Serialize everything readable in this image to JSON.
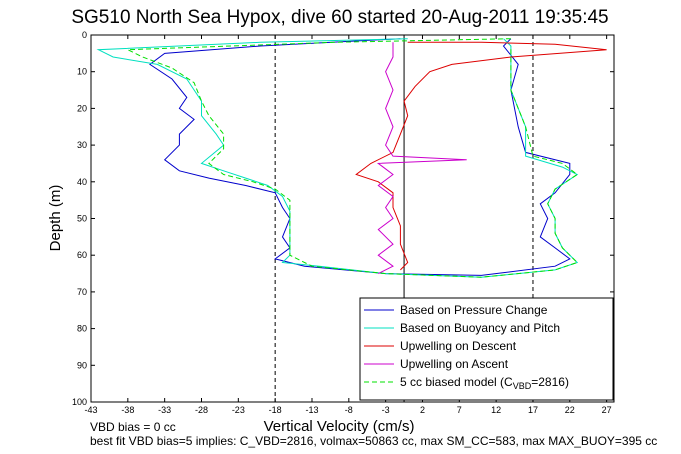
{
  "chart_data": {
    "type": "line",
    "title": "SG510 North Sea Hypox, dive 60 started 20-Aug-2011 19:35:45",
    "xlabel": "Vertical Velocity (cm/s)",
    "ylabel": "Depth (m)",
    "xlim": [
      -43,
      28
    ],
    "ylim": [
      0,
      100
    ],
    "y_reversed": true,
    "xticks": [
      -43,
      -38,
      -33,
      -28,
      -23,
      -18,
      -13,
      -8,
      -3,
      2,
      7,
      12,
      17,
      22,
      27
    ],
    "yticks": [
      0,
      10,
      20,
      30,
      40,
      50,
      60,
      70,
      80,
      90,
      100
    ],
    "grid": false,
    "legend_placement": "bottom-right",
    "vlines": [
      {
        "x": -18,
        "style": "dashed",
        "color": "#000000"
      },
      {
        "x": -0.5,
        "style": "solid",
        "color": "#000000"
      },
      {
        "x": 17,
        "style": "dashed",
        "color": "#000000"
      }
    ],
    "series": [
      {
        "name": "Based on Pressure Change",
        "color": "#0000cc",
        "style": "solid",
        "points": [
          [
            -1,
            1
          ],
          [
            -20,
            3
          ],
          [
            -33,
            5
          ],
          [
            -35,
            8
          ],
          [
            -32,
            12
          ],
          [
            -30,
            17
          ],
          [
            -31,
            20
          ],
          [
            -29,
            23
          ],
          [
            -31,
            27
          ],
          [
            -31,
            30
          ],
          [
            -33,
            34
          ],
          [
            -31,
            37
          ],
          [
            -27,
            39
          ],
          [
            -22,
            41
          ],
          [
            -18,
            43
          ],
          [
            -17,
            47
          ],
          [
            -16,
            50
          ],
          [
            -17,
            55
          ],
          [
            -16,
            58
          ],
          [
            -18,
            61
          ],
          [
            -14,
            63
          ],
          [
            -3,
            65
          ],
          [
            10,
            65.5
          ],
          [
            20,
            63
          ],
          [
            22,
            61
          ],
          [
            20,
            58
          ],
          [
            18,
            55
          ],
          [
            19,
            50
          ],
          [
            18,
            46
          ],
          [
            20,
            43
          ],
          [
            22,
            38
          ],
          [
            22,
            35
          ],
          [
            16,
            32
          ],
          [
            15,
            25
          ],
          [
            14,
            15
          ],
          [
            15,
            8
          ],
          [
            13,
            3
          ],
          [
            14,
            1
          ]
        ]
      },
      {
        "name": "Based on Buoyancy and Pitch",
        "color": "#00e0c0",
        "style": "solid",
        "points": [
          [
            0,
            1
          ],
          [
            -20,
            2
          ],
          [
            -42,
            4
          ],
          [
            -40,
            6
          ],
          [
            -34,
            8
          ],
          [
            -30,
            12
          ],
          [
            -28,
            18
          ],
          [
            -28,
            22
          ],
          [
            -26,
            27
          ],
          [
            -25,
            30
          ],
          [
            -28,
            35
          ],
          [
            -25,
            37
          ],
          [
            -22,
            39
          ],
          [
            -19,
            41
          ],
          [
            -17,
            44
          ],
          [
            -16,
            48
          ],
          [
            -16,
            52
          ],
          [
            -16,
            57
          ],
          [
            -16,
            60
          ],
          [
            -17,
            62
          ],
          [
            -12,
            63
          ],
          [
            -3,
            65
          ],
          [
            10,
            66
          ],
          [
            20,
            64
          ],
          [
            23,
            62
          ],
          [
            21,
            58
          ],
          [
            20,
            54
          ],
          [
            20,
            50
          ],
          [
            19,
            46
          ],
          [
            20,
            42
          ],
          [
            23,
            38
          ],
          [
            21,
            36
          ],
          [
            16,
            33
          ],
          [
            16,
            25
          ],
          [
            14,
            15
          ],
          [
            14,
            8
          ],
          [
            14,
            3
          ],
          [
            13,
            1
          ]
        ]
      },
      {
        "name": "Upwelling on Descent",
        "color": "#dd0000",
        "style": "solid",
        "points": [
          [
            0,
            2
          ],
          [
            10,
            2
          ],
          [
            20,
            2.5
          ],
          [
            27,
            4
          ],
          [
            14,
            6
          ],
          [
            6,
            8
          ],
          [
            3,
            10
          ],
          [
            1,
            14
          ],
          [
            -0.5,
            18
          ],
          [
            0,
            22
          ],
          [
            -1,
            27
          ],
          [
            -2,
            32
          ],
          [
            -5,
            35
          ],
          [
            -7,
            38
          ],
          [
            -4,
            40
          ],
          [
            -2,
            43
          ],
          [
            -2,
            47
          ],
          [
            -1,
            52
          ],
          [
            -1,
            57
          ],
          [
            0,
            62
          ],
          [
            -1,
            64
          ]
        ]
      },
      {
        "name": "Upwelling on Ascent",
        "color": "#cc00cc",
        "style": "solid",
        "points": [
          [
            -4,
            65
          ],
          [
            -2,
            63
          ],
          [
            -4,
            60
          ],
          [
            -2,
            57
          ],
          [
            -4,
            53
          ],
          [
            -2,
            50
          ],
          [
            -3,
            47
          ],
          [
            -2,
            44
          ],
          [
            -4,
            41
          ],
          [
            -2,
            38
          ],
          [
            -4,
            35
          ],
          [
            8,
            34
          ],
          [
            -2,
            33
          ],
          [
            -3,
            30
          ],
          [
            -2,
            25
          ],
          [
            -3,
            20
          ],
          [
            -2,
            15
          ],
          [
            -3,
            10
          ],
          [
            -2,
            6
          ],
          [
            -2,
            2
          ]
        ]
      },
      {
        "name": "5 cc biased model (C_VBD=2816)",
        "color": "#00e000",
        "style": "dashed",
        "points": [
          [
            14,
            1
          ],
          [
            -10,
            2
          ],
          [
            -38,
            4
          ],
          [
            -36,
            6
          ],
          [
            -32,
            9
          ],
          [
            -29,
            13
          ],
          [
            -28,
            18
          ],
          [
            -27,
            22
          ],
          [
            -25,
            27
          ],
          [
            -25,
            31
          ],
          [
            -27,
            35
          ],
          [
            -25,
            38
          ],
          [
            -21,
            40
          ],
          [
            -18,
            42
          ],
          [
            -16,
            45
          ],
          [
            -16,
            50
          ],
          [
            -16,
            55
          ],
          [
            -16,
            60
          ],
          [
            -13,
            63
          ],
          [
            -3,
            65
          ],
          [
            10,
            66
          ],
          [
            20,
            64
          ],
          [
            23,
            62
          ],
          [
            21,
            58
          ],
          [
            20,
            54
          ],
          [
            20,
            50
          ],
          [
            19,
            46
          ],
          [
            20,
            42
          ],
          [
            23,
            38
          ],
          [
            21,
            35
          ],
          [
            17,
            33
          ],
          [
            16,
            25
          ],
          [
            14,
            15
          ],
          [
            14,
            8
          ],
          [
            14,
            3
          ]
        ]
      }
    ],
    "legend": {
      "entries": [
        {
          "label": "Based on Pressure Change",
          "color": "#0000cc",
          "style": "solid"
        },
        {
          "label": "Based on Buoyancy and Pitch",
          "color": "#00e0c0",
          "style": "solid"
        },
        {
          "label": "Upwelling on Descent",
          "color": "#dd0000",
          "style": "solid"
        },
        {
          "label": "Upwelling on Ascent",
          "color": "#cc00cc",
          "style": "solid"
        },
        {
          "label_main": "5 cc biased model (C",
          "label_sub": "VBD",
          "label_end": "=2816)",
          "color": "#00e000",
          "style": "dashed"
        }
      ]
    },
    "annotations": [
      "VBD bias = 0 cc",
      "best fit VBD bias=5 implies: C_VBD=2816, volmax=50863 cc, max SM_CC=583, max MAX_BUOY=395 cc"
    ]
  }
}
